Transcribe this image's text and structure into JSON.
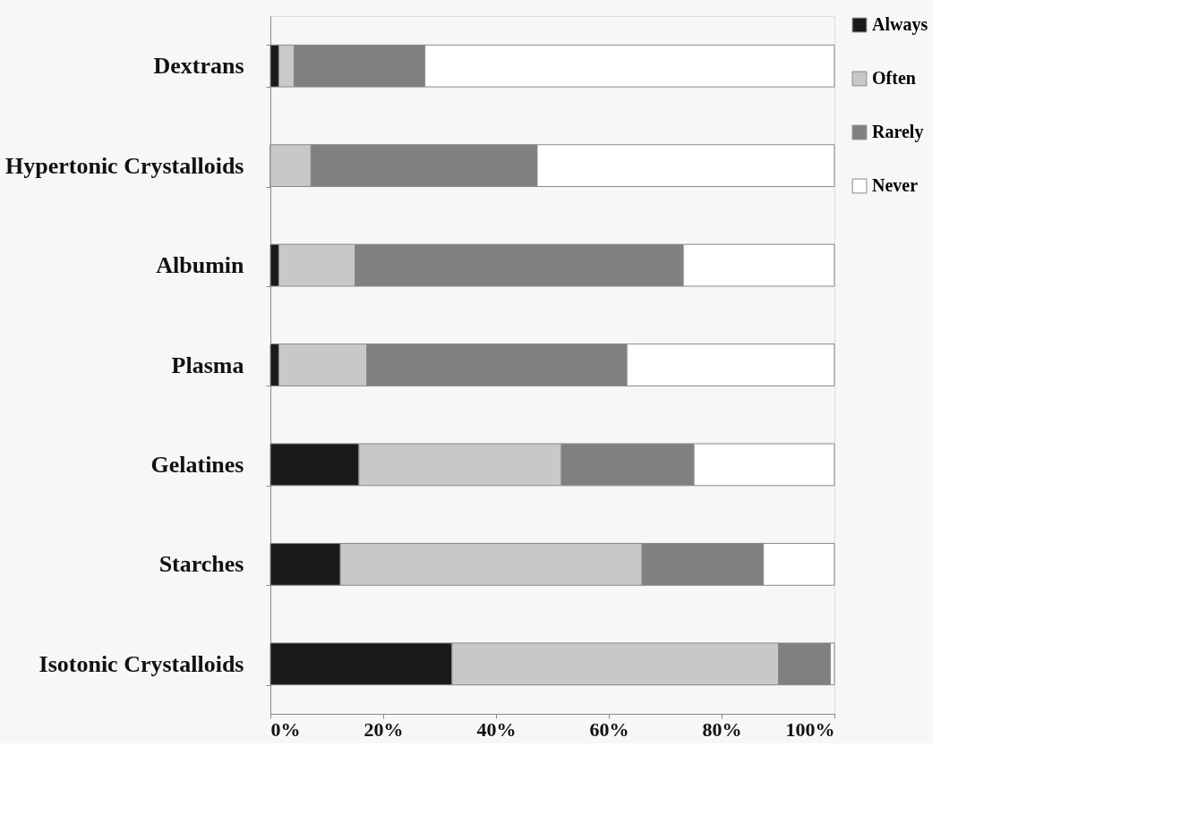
{
  "chart_data": {
    "type": "bar",
    "orientation": "horizontal",
    "stacked": true,
    "categories": [
      "Dextrans",
      "Hypertonic Crystalloids",
      "Albumin",
      "Plasma",
      "Gelatines",
      "Starches",
      "Isotonic Crystalloids"
    ],
    "series": [
      {
        "name": "Always",
        "color": "#1a1a1a",
        "values": [
          1.5,
          0,
          1.5,
          1.5,
          15.7,
          12.4,
          32.2
        ]
      },
      {
        "name": "Often",
        "color": "#c8c8c8",
        "values": [
          2.7,
          7.2,
          13.5,
          15.6,
          35.9,
          53.5,
          57.9
        ]
      },
      {
        "name": "Rarely",
        "color": "#808080",
        "values": [
          23.2,
          40.1,
          58.2,
          46.1,
          23.5,
          21.5,
          9.2
        ]
      },
      {
        "name": "Never",
        "color": "#ffffff",
        "values": [
          72.6,
          52.7,
          26.8,
          36.8,
          24.9,
          12.6,
          0.7
        ]
      }
    ],
    "xlim": [
      0,
      100
    ],
    "xticks": [
      {
        "value": 0,
        "label": "0%"
      },
      {
        "value": 20,
        "label": "20%"
      },
      {
        "value": 40,
        "label": "40%"
      },
      {
        "value": 60,
        "label": "60%"
      },
      {
        "value": 80,
        "label": "80%"
      },
      {
        "value": 100,
        "label": "100%"
      }
    ],
    "grid": false,
    "legend": "top right"
  }
}
